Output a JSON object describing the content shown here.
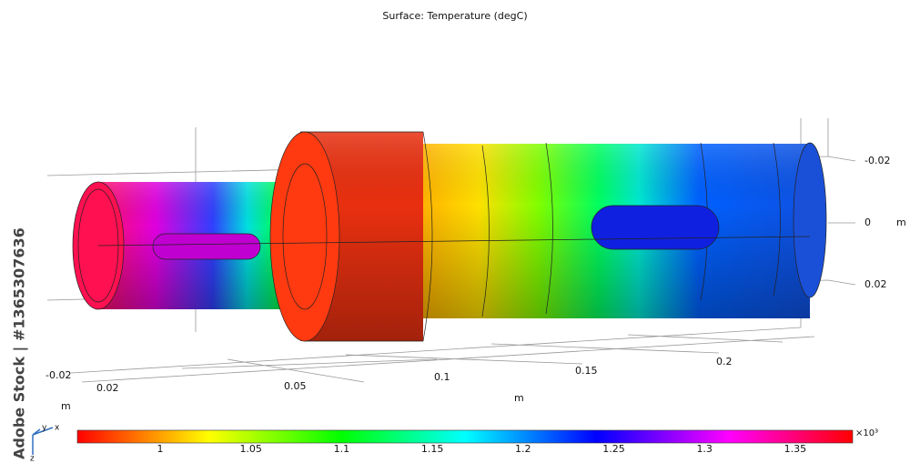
{
  "title": "Surface: Temperature (degC)",
  "vertical_axis": {
    "ticks": [
      "-0.02",
      "0",
      "0.02"
    ],
    "unit": "m"
  },
  "depth_axis": {
    "ticks": [
      "-0.02",
      "0.02"
    ],
    "unit": "m"
  },
  "length_axis": {
    "ticks": [
      "0.05",
      "0.1",
      "0.15",
      "0.2"
    ],
    "unit": "m"
  },
  "colorbar": {
    "ticks": [
      "1",
      "1.05",
      "1.1",
      "1.15",
      "1.2",
      "1.25",
      "1.3",
      "1.35"
    ],
    "multiplier": "×10³"
  },
  "triad": {
    "x": "x",
    "y": "y",
    "z": "z"
  },
  "watermark": "Adobe Stock | #1365307636"
}
